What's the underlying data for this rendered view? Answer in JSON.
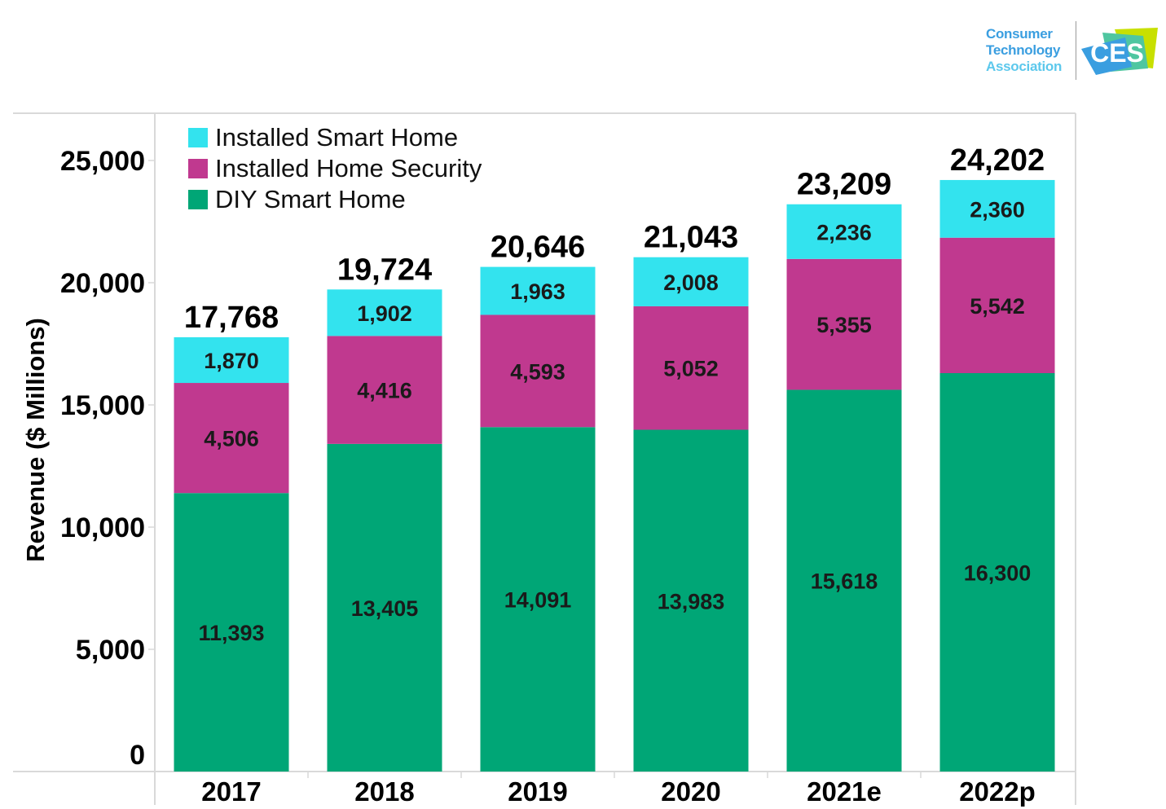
{
  "logo": {
    "org_lines": [
      "Consumer",
      "Technology",
      "Association"
    ],
    "mark_text": "CES"
  },
  "chart_data": {
    "type": "bar",
    "stacked": true,
    "title": "",
    "xlabel": "",
    "ylabel": "Revenue ($ Millions)",
    "ylim": [
      0,
      25000
    ],
    "yticks": [
      0,
      5000,
      10000,
      15000,
      20000,
      25000
    ],
    "ytick_labels": [
      "0",
      "5,000",
      "10,000",
      "15,000",
      "20,000",
      "25,000"
    ],
    "grid": false,
    "legend_position": "top-left",
    "categories": [
      "2017",
      "2018",
      "2019",
      "2020",
      "2021e",
      "2022p"
    ],
    "series": [
      {
        "name": "DIY Smart Home",
        "color": "#00a676",
        "values": [
          11393,
          13405,
          14091,
          13983,
          15618,
          16300
        ],
        "labels": [
          "11,393",
          "13,405",
          "14,091",
          "13,983",
          "15,618",
          "16,300"
        ]
      },
      {
        "name": "Installed Home Security",
        "color": "#c0398f",
        "values": [
          4506,
          4416,
          4593,
          5052,
          5355,
          5542
        ],
        "labels": [
          "4,506",
          "4,416",
          "4,593",
          "5,052",
          "5,355",
          "5,542"
        ]
      },
      {
        "name": "Installed Smart Home",
        "color": "#33e3ee",
        "values": [
          1870,
          1902,
          1963,
          2008,
          2236,
          2360
        ],
        "labels": [
          "1,870",
          "1,902",
          "1,963",
          "2,008",
          "2,236",
          "2,360"
        ]
      }
    ],
    "totals": [
      17768,
      19724,
      20646,
      21043,
      23209,
      24202
    ],
    "total_labels": [
      "17,768",
      "19,724",
      "20,646",
      "21,043",
      "23,209",
      "24,202"
    ],
    "legend_order": [
      "Installed Smart Home",
      "Installed Home Security",
      "DIY Smart Home"
    ]
  }
}
